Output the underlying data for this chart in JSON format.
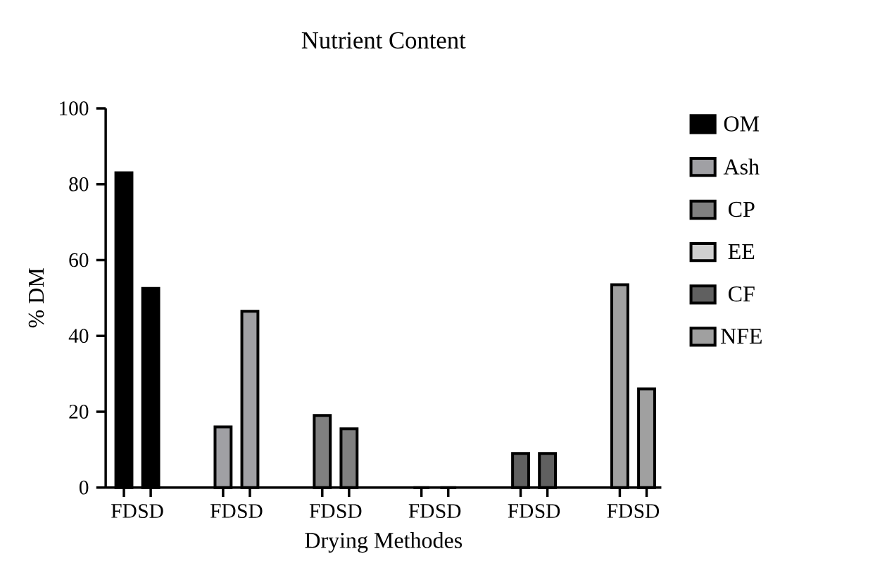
{
  "chart_data": {
    "type": "bar",
    "title": "Nutrient Content",
    "xlabel": "Drying Methodes",
    "ylabel": "% DM",
    "categories": [
      "FD",
      "SD",
      "FD",
      "SD",
      "FD",
      "SD",
      "FD",
      "SD",
      "FD",
      "SD",
      "FD",
      "SD"
    ],
    "series": [
      {
        "name": "OM",
        "color": "#000000",
        "values": [
          83,
          52.5,
          null,
          null,
          null,
          null,
          null,
          null,
          null,
          null,
          null,
          null
        ]
      },
      {
        "name": "Ash",
        "color": "#a0a0a4",
        "values": [
          null,
          null,
          16,
          46.5,
          null,
          null,
          null,
          null,
          null,
          null,
          null,
          null
        ]
      },
      {
        "name": "CP",
        "color": "#808080",
        "values": [
          null,
          null,
          null,
          null,
          19,
          15.5,
          null,
          null,
          null,
          null,
          null,
          null
        ]
      },
      {
        "name": "EE",
        "color": "#d0d0d0",
        "values": [
          null,
          null,
          null,
          null,
          null,
          null,
          0,
          0,
          null,
          null,
          null,
          null
        ]
      },
      {
        "name": "CF",
        "color": "#606060",
        "values": [
          null,
          null,
          null,
          null,
          null,
          null,
          null,
          null,
          9,
          9,
          null,
          null
        ]
      },
      {
        "name": "NFE",
        "color": "#a0a0a0",
        "values": [
          null,
          null,
          null,
          null,
          null,
          null,
          null,
          null,
          null,
          null,
          53.5,
          26
        ]
      }
    ],
    "ylim": [
      0,
      100
    ],
    "yticks": [
      0,
      20,
      40,
      60,
      80,
      100
    ],
    "legend": "right",
    "grid": false
  }
}
